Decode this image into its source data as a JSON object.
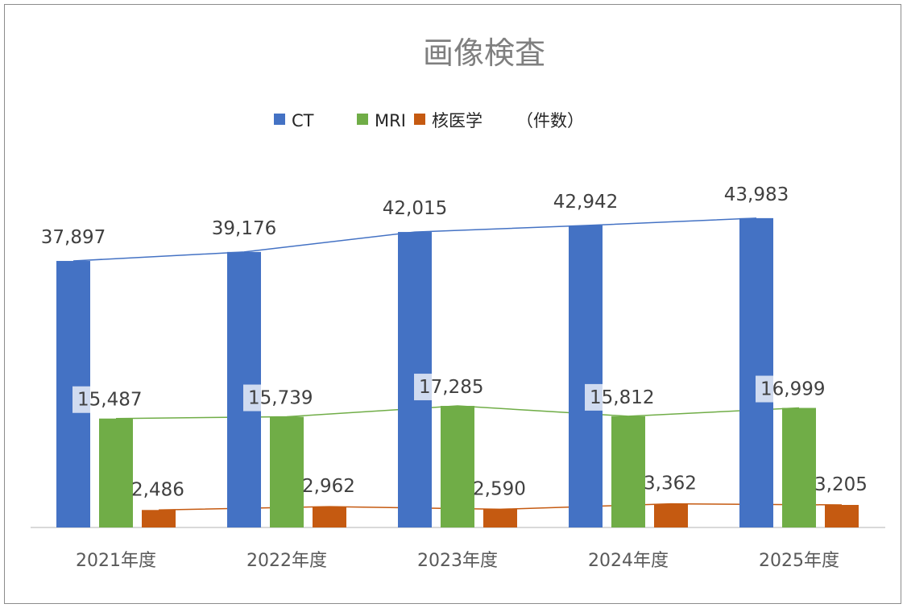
{
  "chart_data": {
    "type": "bar",
    "title": "画像検査",
    "categories": [
      "2021年度",
      "2022年度",
      "2023年度",
      "2024年度",
      "2025年度"
    ],
    "series": [
      {
        "name": "CT",
        "color": "#4472C4",
        "values": [
          37897,
          39176,
          42015,
          42942,
          43983
        ],
        "labels": [
          "37,897",
          "39,176",
          "42,015",
          "42,942",
          "43,983"
        ]
      },
      {
        "name": "MRI",
        "color": "#70AD47",
        "values": [
          15487,
          15739,
          17285,
          15812,
          16999
        ],
        "labels": [
          "15,487",
          "15,739",
          "17,285",
          "15,812",
          "16,999"
        ]
      },
      {
        "name": "核医学",
        "color": "#C55A11",
        "values": [
          2486,
          2962,
          2590,
          3362,
          3205
        ],
        "labels": [
          "2,486",
          "2,962",
          "2,590",
          "3,362",
          "3,205"
        ]
      }
    ],
    "legend_note": "（件数）",
    "legend_position": "top",
    "trend_lines": true,
    "ylim": [
      0,
      75000
    ],
    "grid": false,
    "xlabel": "",
    "ylabel": ""
  }
}
